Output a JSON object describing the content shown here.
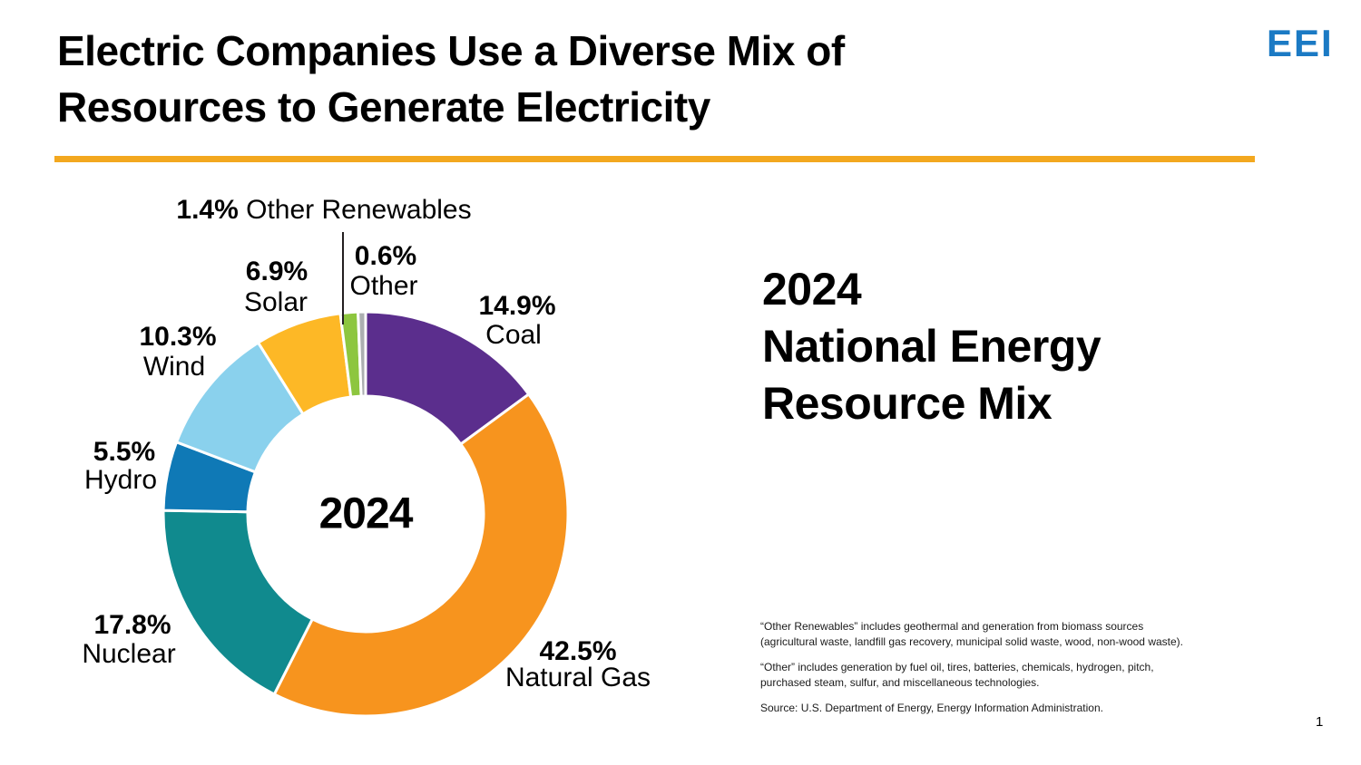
{
  "slide": {
    "title_line1": "Electric Companies Use a Diverse Mix of",
    "title_line2": "Resources to Generate Electricity",
    "logo_text": "EEI",
    "page_number": "1"
  },
  "right_panel": {
    "heading_line1": "2024",
    "heading_line2": "National Energy",
    "heading_line3": "Resource Mix",
    "footnote1": "“Other Renewables” includes geothermal and generation from biomass sources (agricultural waste, landfill gas recovery, municipal solid waste, wood, non-wood waste).",
    "footnote2": "“Other” includes generation by fuel oil, tires, batteries, chemicals, hydrogen, pitch, purchased steam, sulfur, and miscellaneous technologies.",
    "source": "Source: U.S. Department of Energy, Energy Information Administration."
  },
  "colors": {
    "accent_rule": "#F3A81F",
    "logo_blue": "#1B7AC4",
    "leader_line": "#231F20"
  },
  "chart_data": {
    "type": "pie",
    "subtype": "donut",
    "title": "2024 National Energy Resource Mix",
    "center_label": "2024",
    "units": "percent",
    "direction": "clockwise",
    "start_angle_deg": 0,
    "outer_radius_px": 223,
    "inner_radius_px": 130,
    "slices": [
      {
        "label": "Coal",
        "value": 14.9,
        "pct": "14.9%",
        "color": "#5B2E8D"
      },
      {
        "label": "Natural Gas",
        "value": 42.5,
        "pct": "42.5%",
        "color": "#F7941E"
      },
      {
        "label": "Nuclear",
        "value": 17.8,
        "pct": "17.8%",
        "color": "#108A8E"
      },
      {
        "label": "Hydro",
        "value": 5.5,
        "pct": "5.5%",
        "color": "#0F79B6"
      },
      {
        "label": "Wind",
        "value": 10.3,
        "pct": "10.3%",
        "color": "#8AD1ED"
      },
      {
        "label": "Solar",
        "value": 6.9,
        "pct": "6.9%",
        "color": "#FDB826"
      },
      {
        "label": "Other Renewables",
        "value": 1.4,
        "pct": "1.4%",
        "color": "#8DC63F"
      },
      {
        "label": "Other",
        "value": 0.6,
        "pct": "0.6%",
        "color": "#ACAFB1"
      }
    ]
  }
}
